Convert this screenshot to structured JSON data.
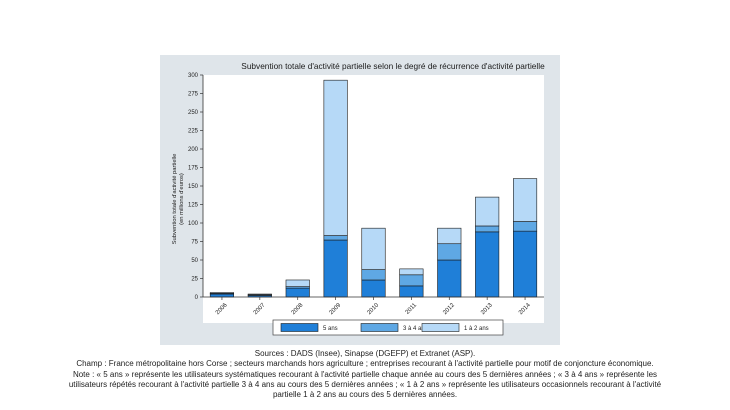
{
  "chart_data": {
    "type": "bar",
    "stacked": true,
    "title": "Subvention totale d'activité partielle selon le degré de récurrence d'activité partielle",
    "ylabel_line1": "Subvention totale d'activité partielle",
    "ylabel_line2": "(en millions d'euros)",
    "xlabel": "",
    "ylim": [
      0,
      300
    ],
    "yticks": [
      0,
      25,
      50,
      75,
      100,
      125,
      150,
      175,
      200,
      225,
      250,
      275,
      300
    ],
    "ytick_labels": [
      "0",
      "25",
      "50",
      "75",
      "100",
      "125",
      "150",
      "175",
      "200",
      "225",
      "250",
      "275",
      "300"
    ],
    "grid": false,
    "legend_position": "bottom",
    "categories": [
      "2006",
      "2007",
      "2008",
      "2009",
      "2010",
      "2011",
      "2012",
      "2013",
      "2014"
    ],
    "series": [
      {
        "name": "5 ans",
        "color": "#1f7fd8",
        "values": [
          4,
          2,
          12,
          77,
          23,
          15,
          50,
          88,
          89
        ]
      },
      {
        "name": "3 à 4 ans",
        "color": "#5fa8e4",
        "values": [
          1,
          1,
          2,
          6,
          14,
          15,
          22,
          8,
          13
        ]
      },
      {
        "name": "1 à 2 ans",
        "color": "#b6d9f7",
        "values": [
          1,
          1,
          9,
          210,
          56,
          8,
          21,
          39,
          58
        ]
      }
    ]
  },
  "notes": {
    "sources": "Sources : DADS (Insee), Sinapse (DGEFP) et Extranet (ASP).",
    "champ": "Champ : France métropolitaine hors Corse ; secteurs marchands hors agriculture ; entreprises recourant à l'activité partielle pour motif de conjoncture économique.",
    "note": "Note : « 5 ans » représente les utilisateurs systématiques recourant à l'activité partielle chaque année au cours des 5 dernières années ; « 3 à 4 ans » représente les utilisateurs répétés recourant à l'activité partielle 3 à 4 ans au cours des 5 dernières années ; « 1 à 2 ans » représente les utilisateurs occasionnels recourant à l'activité partielle 1 à 2 ans au cours des 5 dernières années."
  }
}
